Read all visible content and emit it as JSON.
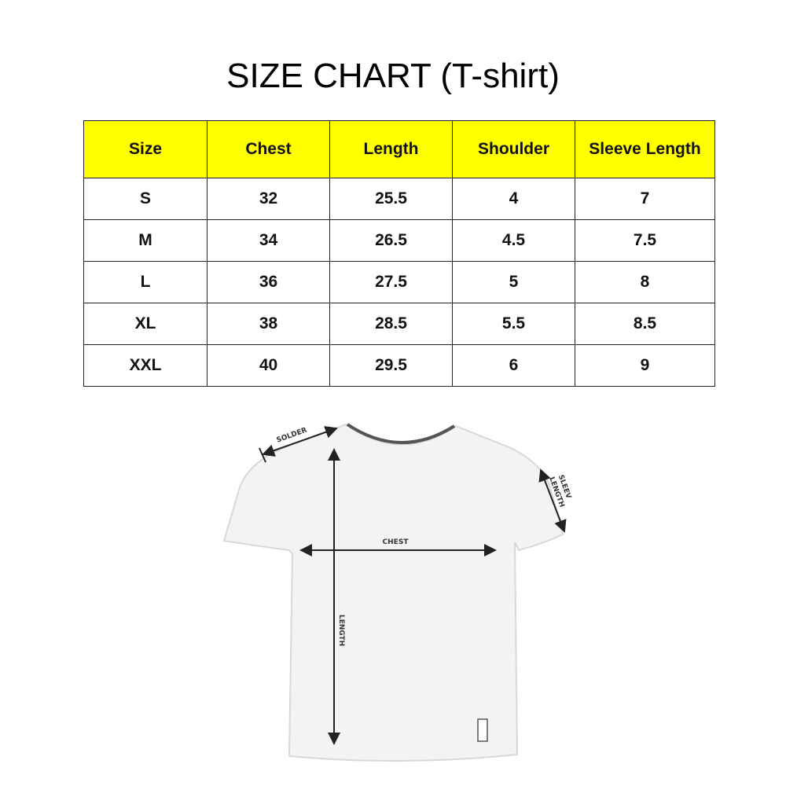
{
  "title": "SIZE CHART (T-shirt)",
  "table": {
    "header": [
      "Size",
      "Chest",
      "Length",
      "Shoulder",
      "Sleeve Length"
    ],
    "rows": [
      [
        "S",
        "32",
        "25.5",
        "4",
        "7"
      ],
      [
        "M",
        "34",
        "26.5",
        "4.5",
        "7.5"
      ],
      [
        "L",
        "36",
        "27.5",
        "5",
        "8"
      ],
      [
        "XL",
        "38",
        "28.5",
        "5.5",
        "8.5"
      ],
      [
        "XXL",
        "40",
        "29.5",
        "6",
        "9"
      ]
    ]
  },
  "diagram": {
    "shoulder_label": "SOLDER",
    "chest_label": "CHEST",
    "length_label": "LENGTH",
    "sleeve_label": [
      "SLEEV",
      "LENGTH"
    ]
  }
}
